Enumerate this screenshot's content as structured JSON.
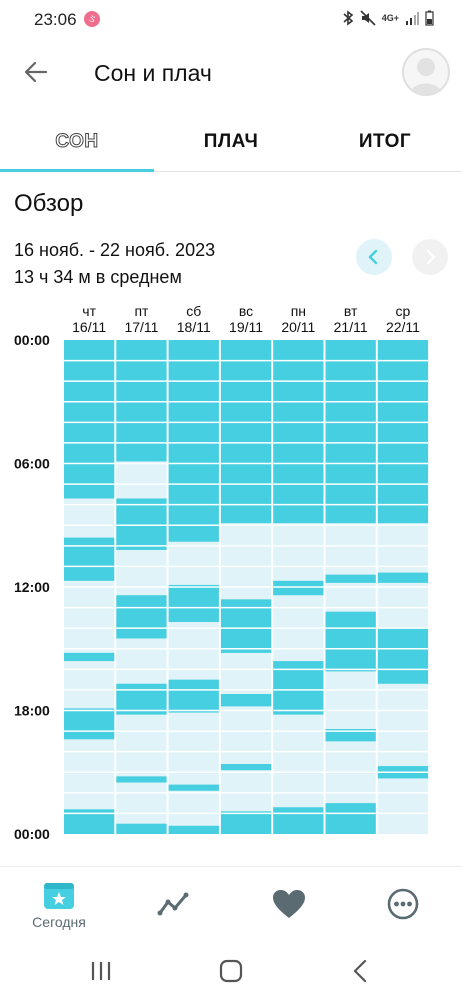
{
  "status_bar": {
    "time": "23:06",
    "app_badge": "ઙ",
    "signal_label": "4G+"
  },
  "app_bar": {
    "title": "Сон и плач"
  },
  "tabs": [
    {
      "label": "СОН",
      "selected": true
    },
    {
      "label": "ПЛАЧ",
      "selected": false
    },
    {
      "label": "ИТОГ",
      "selected": false
    }
  ],
  "overview": {
    "title": "Обзор",
    "date_range": "16 нояб. - 22 нояб. 2023",
    "average": "13 ч 34 м в среднем"
  },
  "colors": {
    "accent": "#45cfe0",
    "sleep": "#45cfe0",
    "awake": "#dff3f8",
    "grid_text": "#111111"
  },
  "chart_data": {
    "type": "heatmap",
    "description_units": "hours of day (0-24), sleep intervals per day",
    "y_labels": [
      "00:00",
      "06:00",
      "12:00",
      "18:00",
      "00:00"
    ],
    "ylim": [
      0,
      24
    ],
    "days": [
      {
        "weekday": "чт",
        "date": "16/11",
        "sleep": [
          [
            0,
            7.7
          ],
          [
            9.6,
            11.7
          ],
          [
            15.2,
            15.6
          ],
          [
            17.9,
            19.4
          ],
          [
            22.8,
            24
          ]
        ]
      },
      {
        "weekday": "пт",
        "date": "17/11",
        "sleep": [
          [
            0,
            5.9
          ],
          [
            7.7,
            10.2
          ],
          [
            12.4,
            14.5
          ],
          [
            16.7,
            18.2
          ],
          [
            21.2,
            21.5
          ],
          [
            23.5,
            24
          ]
        ]
      },
      {
        "weekday": "сб",
        "date": "18/11",
        "sleep": [
          [
            0,
            9.8
          ],
          [
            11.9,
            13.7
          ],
          [
            16.5,
            18.1
          ],
          [
            21.6,
            21.9
          ],
          [
            23.6,
            24
          ]
        ]
      },
      {
        "weekday": "вс",
        "date": "19/11",
        "sleep": [
          [
            0,
            8.9
          ],
          [
            12.6,
            15.2
          ],
          [
            17.2,
            17.8
          ],
          [
            20.6,
            20.9
          ],
          [
            22.9,
            24
          ]
        ]
      },
      {
        "weekday": "пн",
        "date": "20/11",
        "sleep": [
          [
            0,
            8.9
          ],
          [
            11.7,
            12.4
          ],
          [
            15.6,
            18.2
          ],
          [
            22.7,
            24
          ]
        ]
      },
      {
        "weekday": "вт",
        "date": "21/11",
        "sleep": [
          [
            0,
            8.9
          ],
          [
            11.4,
            11.8
          ],
          [
            13.2,
            16.1
          ],
          [
            18.9,
            19.5
          ],
          [
            22.5,
            24
          ]
        ]
      },
      {
        "weekday": "ср",
        "date": "22/11",
        "sleep": [
          [
            0,
            8.9
          ],
          [
            11.3,
            11.8
          ],
          [
            14.0,
            16.7
          ],
          [
            20.7,
            21.3
          ]
        ]
      }
    ]
  },
  "bottom_nav": {
    "today_label": "Сегодня",
    "items": [
      "calendar-star-icon",
      "trend-icon",
      "heart-icon",
      "more-icon"
    ]
  }
}
